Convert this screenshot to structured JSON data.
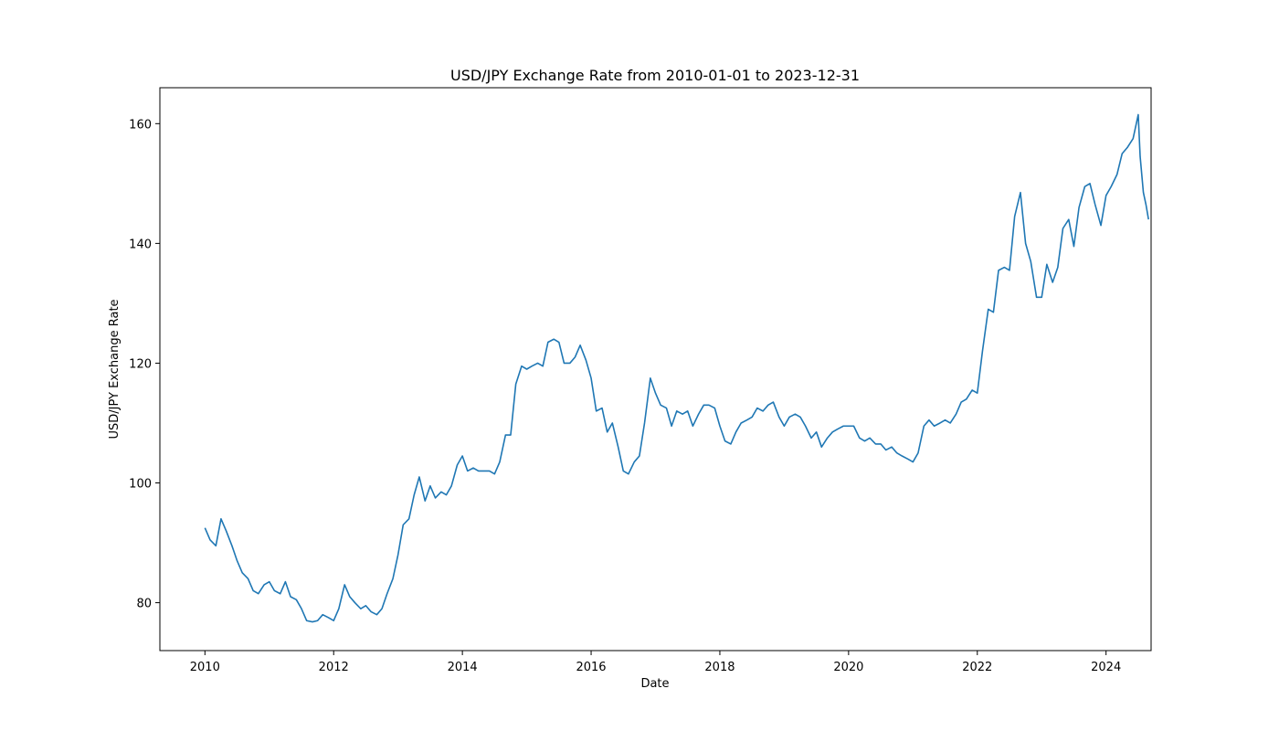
{
  "chart_data": {
    "type": "line",
    "title": "USD/JPY Exchange Rate from 2010-01-01 to 2023-12-31",
    "xlabel": "Date",
    "ylabel": "USD/JPY Exchange Rate",
    "xlim": [
      2009.3,
      2024.7
    ],
    "ylim": [
      72,
      166
    ],
    "x_ticks": [
      2010,
      2012,
      2014,
      2016,
      2018,
      2020,
      2022,
      2024
    ],
    "x_tick_labels": [
      "2010",
      "2012",
      "2014",
      "2016",
      "2018",
      "2020",
      "2022",
      "2024"
    ],
    "y_ticks": [
      80,
      100,
      120,
      140,
      160
    ],
    "y_tick_labels": [
      "80",
      "100",
      "120",
      "140",
      "160"
    ],
    "grid": false,
    "legend": "none",
    "series": [
      {
        "color": "#1f77b4",
        "x": [
          2010.0,
          2010.08,
          2010.17,
          2010.25,
          2010.33,
          2010.42,
          2010.5,
          2010.58,
          2010.67,
          2010.75,
          2010.83,
          2010.92,
          2011.0,
          2011.08,
          2011.17,
          2011.25,
          2011.33,
          2011.42,
          2011.5,
          2011.58,
          2011.67,
          2011.75,
          2011.83,
          2011.92,
          2012.0,
          2012.08,
          2012.17,
          2012.25,
          2012.33,
          2012.42,
          2012.5,
          2012.58,
          2012.67,
          2012.75,
          2012.83,
          2012.92,
          2013.0,
          2013.08,
          2013.17,
          2013.25,
          2013.33,
          2013.42,
          2013.5,
          2013.58,
          2013.67,
          2013.75,
          2013.83,
          2013.92,
          2014.0,
          2014.08,
          2014.17,
          2014.25,
          2014.33,
          2014.42,
          2014.5,
          2014.58,
          2014.67,
          2014.75,
          2014.83,
          2014.92,
          2015.0,
          2015.08,
          2015.17,
          2015.25,
          2015.33,
          2015.42,
          2015.5,
          2015.58,
          2015.67,
          2015.75,
          2015.83,
          2015.92,
          2016.0,
          2016.08,
          2016.17,
          2016.25,
          2016.33,
          2016.42,
          2016.5,
          2016.58,
          2016.67,
          2016.75,
          2016.83,
          2016.92,
          2017.0,
          2017.08,
          2017.17,
          2017.25,
          2017.33,
          2017.42,
          2017.5,
          2017.58,
          2017.67,
          2017.75,
          2017.83,
          2017.92,
          2018.0,
          2018.08,
          2018.17,
          2018.25,
          2018.33,
          2018.42,
          2018.5,
          2018.58,
          2018.67,
          2018.75,
          2018.83,
          2018.92,
          2019.0,
          2019.08,
          2019.17,
          2019.25,
          2019.33,
          2019.42,
          2019.5,
          2019.58,
          2019.67,
          2019.75,
          2019.83,
          2019.92,
          2020.0,
          2020.08,
          2020.17,
          2020.25,
          2020.33,
          2020.42,
          2020.5,
          2020.58,
          2020.67,
          2020.75,
          2020.83,
          2020.92,
          2021.0,
          2021.08,
          2021.17,
          2021.25,
          2021.33,
          2021.42,
          2021.5,
          2021.58,
          2021.67,
          2021.75,
          2021.83,
          2021.92,
          2022.0,
          2022.08,
          2022.17,
          2022.25,
          2022.33,
          2022.42,
          2022.5,
          2022.58,
          2022.67,
          2022.75,
          2022.83,
          2022.92,
          2023.0,
          2023.08,
          2023.17,
          2023.25,
          2023.33,
          2023.42,
          2023.5,
          2023.58,
          2023.67,
          2023.75,
          2023.83,
          2023.92,
          2024.0,
          2024.08,
          2024.17,
          2024.25,
          2024.33,
          2024.42,
          2024.5,
          2024.53,
          2024.58,
          2024.62,
          2024.66
        ],
        "y": [
          92.5,
          90.5,
          89.5,
          94.0,
          92.0,
          89.5,
          87.0,
          85.0,
          84.0,
          82.0,
          81.5,
          83.0,
          83.5,
          82.0,
          81.5,
          83.5,
          81.0,
          80.5,
          79.0,
          77.0,
          76.8,
          77.0,
          78.0,
          77.5,
          77.0,
          79.0,
          83.0,
          81.0,
          80.0,
          79.0,
          79.5,
          78.5,
          78.0,
          79.0,
          81.5,
          84.0,
          88.0,
          93.0,
          94.0,
          98.0,
          101.0,
          97.0,
          99.5,
          97.5,
          98.5,
          98.0,
          99.5,
          103.0,
          104.5,
          102.0,
          102.5,
          102.0,
          102.0,
          102.0,
          101.5,
          103.5,
          108.0,
          108.0,
          116.5,
          119.5,
          119.0,
          119.5,
          120.0,
          119.5,
          123.5,
          124.0,
          123.5,
          120.0,
          120.0,
          121.0,
          123.0,
          120.5,
          117.5,
          112.0,
          112.5,
          108.5,
          110.0,
          106.0,
          102.0,
          101.5,
          103.5,
          104.5,
          110.0,
          117.5,
          115.0,
          113.0,
          112.5,
          109.5,
          112.0,
          111.5,
          112.0,
          109.5,
          111.5,
          113.0,
          113.0,
          112.5,
          109.5,
          107.0,
          106.5,
          108.5,
          110.0,
          110.5,
          111.0,
          112.5,
          112.0,
          113.0,
          113.5,
          111.0,
          109.5,
          111.0,
          111.5,
          111.0,
          109.5,
          107.5,
          108.5,
          106.0,
          107.5,
          108.5,
          109.0,
          109.5,
          109.5,
          109.5,
          107.5,
          107.0,
          107.5,
          106.5,
          106.5,
          105.5,
          106.0,
          105.0,
          104.5,
          104.0,
          103.5,
          105.0,
          109.5,
          110.5,
          109.5,
          110.0,
          110.5,
          110.0,
          111.5,
          113.5,
          114.0,
          115.5,
          115.0,
          122.0,
          129.0,
          128.5,
          135.5,
          136.0,
          135.5,
          144.5,
          148.5,
          140.0,
          137.0,
          131.0,
          131.0,
          136.5,
          133.5,
          136.0,
          142.5,
          144.0,
          139.5,
          146.0,
          149.5,
          150.0,
          146.5,
          143.0,
          148.0,
          149.5,
          151.5,
          155.0,
          156.0,
          157.5,
          161.5,
          154.5,
          148.5,
          146.5,
          144.0
        ]
      }
    ]
  }
}
